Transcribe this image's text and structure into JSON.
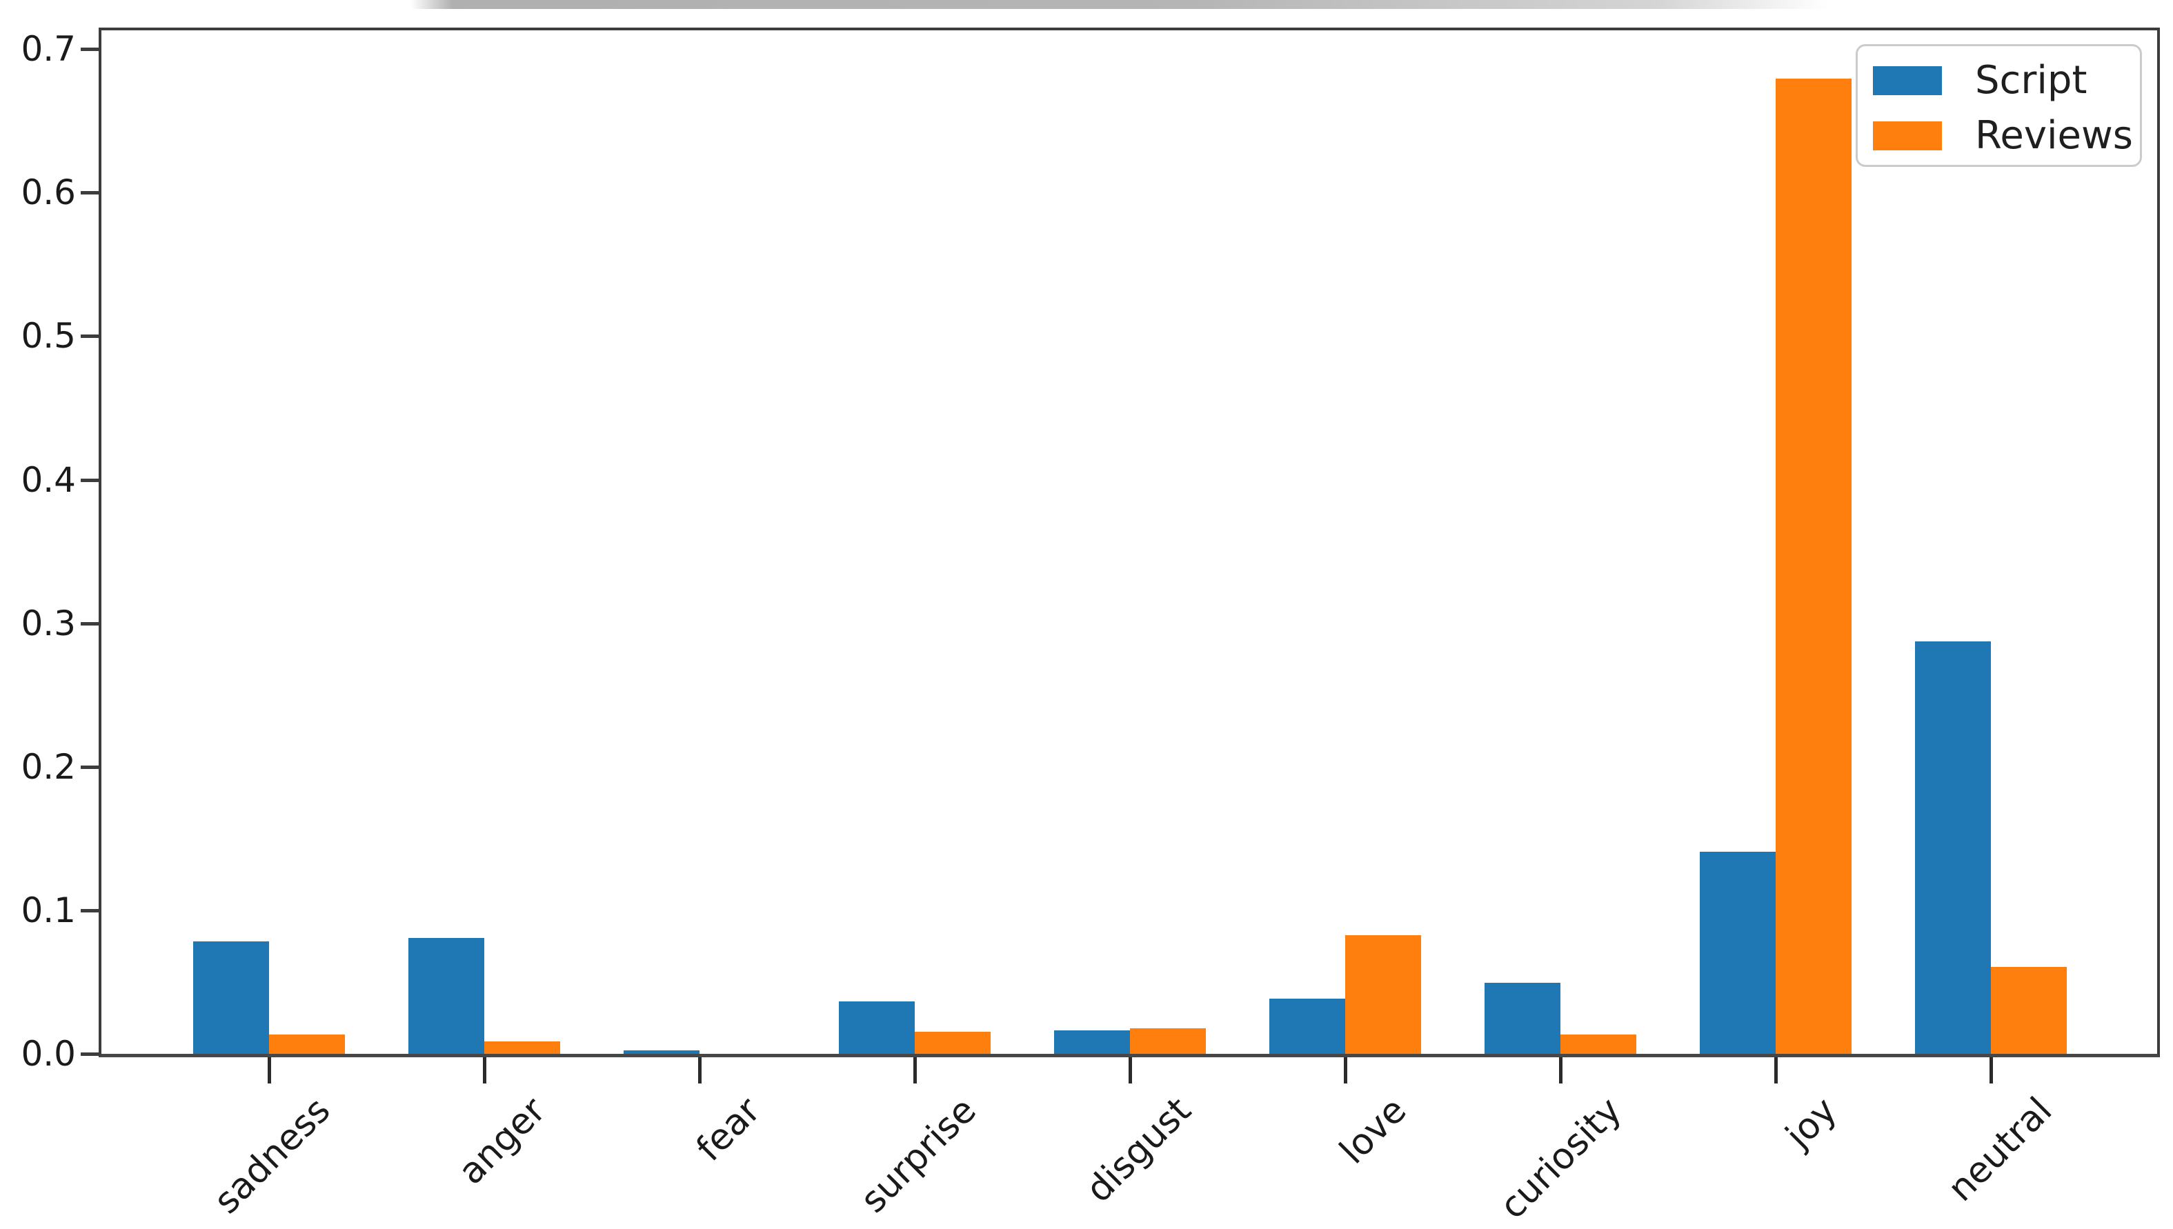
{
  "chart_data": {
    "type": "bar",
    "title": "",
    "xlabel": "",
    "ylabel": "",
    "categories": [
      "sadness",
      "anger",
      "fear",
      "surprise",
      "disgust",
      "love",
      "curiosity",
      "joy",
      "neutral"
    ],
    "series": [
      {
        "name": "Script",
        "color": "#1f77b4",
        "values": [
          0.08,
          0.082,
          0.004,
          0.038,
          0.018,
          0.04,
          0.051,
          0.142,
          0.289
        ]
      },
      {
        "name": "Reviews",
        "color": "#ff7f0e",
        "values": [
          0.015,
          0.01,
          0.0,
          0.017,
          0.019,
          0.084,
          0.015,
          0.681,
          0.062
        ]
      }
    ],
    "ylim": [
      0.0,
      0.714
    ],
    "yticks": [
      "0.0",
      "0.1",
      "0.2",
      "0.3",
      "0.4",
      "0.5",
      "0.6",
      "0.7"
    ],
    "ytick_step": 0.1,
    "xtick_rotation_deg": 45,
    "grid": false,
    "legend_position": "upper right",
    "axis_color": "#3c3c3c"
  }
}
